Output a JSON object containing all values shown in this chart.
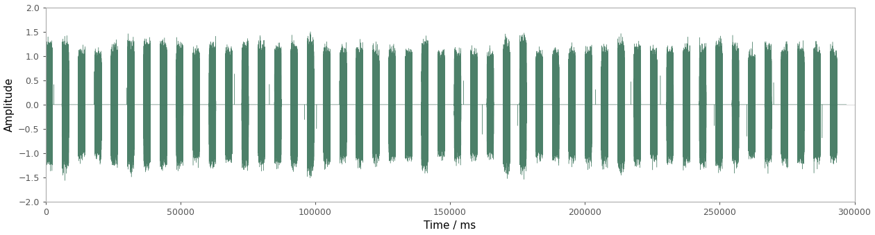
{
  "title": "",
  "xlabel": "Time / ms",
  "ylabel": "Amplitude",
  "xlim": [
    0,
    300000
  ],
  "ylim": [
    -2.0,
    2.0
  ],
  "yticks": [
    -2.0,
    -1.5,
    -1.0,
    -0.5,
    0.0,
    0.5,
    1.0,
    1.5,
    2.0
  ],
  "xticks": [
    0,
    50000,
    100000,
    150000,
    200000,
    250000,
    300000
  ],
  "line_color": "#2d6a4f",
  "background_color": "#ffffff",
  "total_duration_ms": 297000,
  "n_contractions": 49,
  "burst_duty_cycle": 0.42,
  "base_amplitude": 0.85,
  "noise_amplitude": 0.12,
  "carrier_freq_hz": 120.0,
  "envelope_sigma": 8,
  "figsize": [
    12.6,
    3.39
  ],
  "dpi": 100
}
